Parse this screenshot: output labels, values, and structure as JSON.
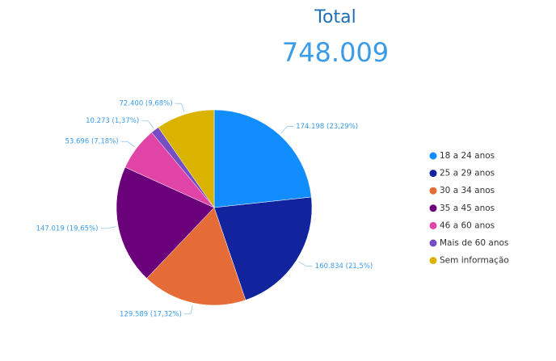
{
  "chart_data": {
    "type": "pie",
    "heading": "Total",
    "total": {
      "value": 748009,
      "label": "748.009"
    },
    "categories": [
      "18 a 24 anos",
      "25 a 29 anos",
      "30 a 34 anos",
      "35 a 45 anos",
      "46 a 60 anos",
      "Mais de 60 anos",
      "Sem informação"
    ],
    "values": [
      174198,
      160834,
      129589,
      147019,
      53696,
      10273,
      72400
    ],
    "value_labels": [
      "174.198 (23,29%)",
      "160.834 (21,5%)",
      "129.589 (17,32%)",
      "147.019 (19,65%)",
      "53.696 (7,18%)",
      "10.273 (1,37%)",
      "72.400 (9,68%)"
    ],
    "colors": [
      "#118dff",
      "#12239e",
      "#e66c37",
      "#6b007b",
      "#e044a7",
      "#744ec2",
      "#d9b300"
    ],
    "legend": "right"
  }
}
